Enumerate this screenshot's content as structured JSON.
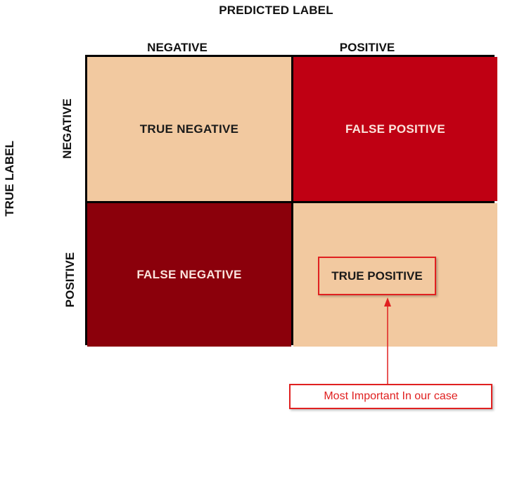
{
  "axis": {
    "predicted_title": "PREDICTED LABEL",
    "true_title": "TRUE LABEL",
    "col_negative": "NEGATIVE",
    "col_positive": "POSITIVE",
    "row_negative": "NEGATIVE",
    "row_positive": "POSITIVE"
  },
  "cells": {
    "true_negative": "TRUE NEGATIVE",
    "false_positive": "FALSE POSITIVE",
    "false_negative": "FALSE NEGATIVE",
    "true_positive": "TRUE POSITIVE"
  },
  "annotation": {
    "note": "Most Important In our case"
  },
  "colors": {
    "true_cells": "#f2c9a0",
    "false_positive": "#bf0013",
    "false_negative": "#8b000b",
    "highlight": "#e02020"
  }
}
